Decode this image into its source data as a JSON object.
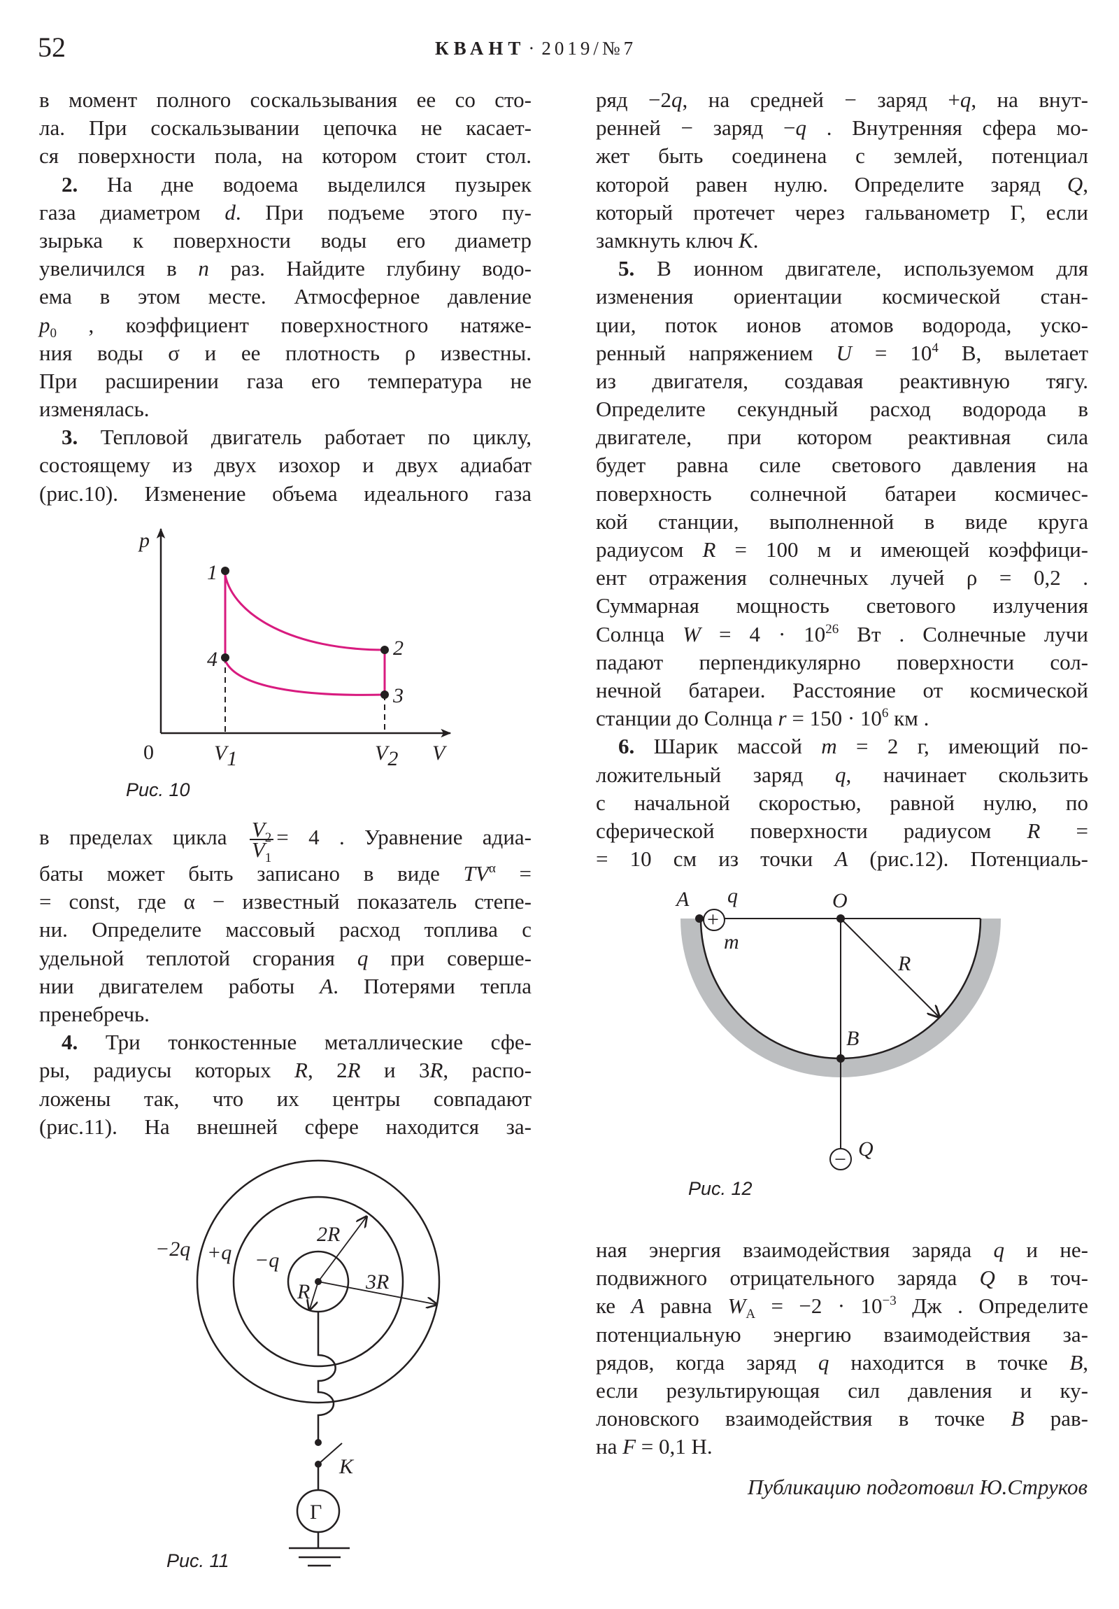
{
  "header": {
    "page_number": "52",
    "magazine": "КВАНТ",
    "separator": "·",
    "issue": "2019/№7"
  },
  "colors": {
    "text": "#231f20",
    "cycle_curve": "#d81b7f",
    "bowl": "#bcbec0"
  },
  "left": {
    "blocks": [
      {
        "lines": [
          {
            "seg": [
              "в момент полного соскальзывания ее со сто-"
            ]
          },
          {
            "seg": [
              "ла. При соскальзывании цепочка не касает-"
            ]
          },
          {
            "seg": [
              "ся поверхности пола, на котором стоит стол."
            ]
          },
          {
            "indent": true,
            "seg": [
              {
                "t": "2.",
                "s": "b"
              },
              " На дне водоема выделился пузырек"
            ]
          },
          {
            "seg": [
              "газа диаметром ",
              {
                "t": "d",
                "s": "i"
              },
              ". При подъеме этого пу-"
            ]
          },
          {
            "seg": [
              "зырька к поверхности воды его диаметр"
            ]
          },
          {
            "seg": [
              "увеличился в ",
              {
                "t": "n",
                "s": "i"
              },
              " раз. Найдите глубину водо-"
            ]
          },
          {
            "seg": [
              "ема в этом месте. Атмосферное давление"
            ]
          },
          {
            "seg": [
              {
                "t": "p",
                "s": "i"
              },
              {
                "t": "0",
                "s": "sub"
              },
              " , коэффициент поверхностного натяже-"
            ]
          },
          {
            "seg": [
              "ния воды σ и ее плотность ρ известны."
            ]
          },
          {
            "seg": [
              "При расширении газа его температура не"
            ]
          },
          {
            "last": true,
            "seg": [
              "изменялась."
            ]
          },
          {
            "indent": true,
            "seg": [
              {
                "t": "3.",
                "s": "b"
              },
              " Тепловой двигатель работает по циклу,"
            ]
          },
          {
            "seg": [
              "состоящему из двух изохор и двух адиабат"
            ]
          },
          {
            "seg": [
              "(рис.10). Изменение объема идеального газа"
            ]
          }
        ]
      },
      {
        "lines": [
          {
            "seg": [
              "в пределах цикла ",
              {
                "frac": {
                  "num": "V",
                  "num_sub": "2",
                  "den": "V",
                  "den_sub": "1"
                }
              },
              "= 4 . Уравнение адиа-"
            ]
          },
          {
            "seg": [
              "баты может быть записано в виде ",
              {
                "t": "TV",
                "s": "i"
              },
              {
                "t": "α",
                "s": "sup"
              },
              " ="
            ]
          },
          {
            "seg": [
              "= const, где α − известный показатель степе-"
            ]
          },
          {
            "seg": [
              "ни. Определите массовый расход топлива с"
            ]
          },
          {
            "seg": [
              "удельной теплотой сгорания ",
              {
                "t": "q",
                "s": "i"
              },
              " при соверше-"
            ]
          },
          {
            "seg": [
              "нии двигателем работы ",
              {
                "t": "A",
                "s": "i"
              },
              ". Потерями тепла"
            ]
          },
          {
            "last": true,
            "seg": [
              "пренебречь."
            ]
          },
          {
            "indent": true,
            "seg": [
              {
                "t": "4.",
                "s": "b"
              },
              " Три тонкостенные металлические сфе-"
            ]
          },
          {
            "seg": [
              "ры, радиусы которых ",
              {
                "t": "R",
                "s": "i"
              },
              ", 2",
              {
                "t": "R",
                "s": "i"
              },
              " и 3",
              {
                "t": "R",
                "s": "i"
              },
              ", распо-"
            ]
          },
          {
            "seg": [
              "ложены так, что их центры совпадают"
            ]
          },
          {
            "seg": [
              "(рис.11). На внешней сфере находится за-"
            ]
          }
        ]
      }
    ]
  },
  "right": {
    "blocks": [
      {
        "lines": [
          {
            "seg": [
              "ряд −2",
              {
                "t": "q",
                "s": "i"
              },
              ", на средней − заряд +",
              {
                "t": "q",
                "s": "i"
              },
              ", на внут-"
            ]
          },
          {
            "seg": [
              "ренней − заряд −",
              {
                "t": "q",
                "s": "i"
              },
              " . Внутренняя сфера мо-"
            ]
          },
          {
            "seg": [
              "жет быть соединена с землей, потенциал"
            ]
          },
          {
            "seg": [
              "которой равен нулю. Определите заряд ",
              {
                "t": "Q",
                "s": "i"
              },
              ","
            ]
          },
          {
            "seg": [
              "который протечет через гальванометр Г, если"
            ]
          },
          {
            "last": true,
            "seg": [
              "замкнуть ключ ",
              {
                "t": "K",
                "s": "i"
              },
              "."
            ]
          },
          {
            "indent": true,
            "seg": [
              {
                "t": "5.",
                "s": "b"
              },
              " В ионном двигателе, используемом для"
            ]
          },
          {
            "seg": [
              "изменения ориентации космической стан-"
            ]
          },
          {
            "seg": [
              "ции, поток ионов атомов водорода, уско-"
            ]
          },
          {
            "seg": [
              "ренный напряжением ",
              {
                "t": "U",
                "s": "i"
              },
              " = 10",
              {
                "t": "4",
                "s": "sup"
              },
              " В, вылетает"
            ]
          },
          {
            "seg": [
              "из двигателя, создавая реактивную тягу."
            ]
          },
          {
            "seg": [
              "Определите секундный расход водорода в"
            ]
          },
          {
            "seg": [
              "двигателе, при котором реактивная сила"
            ]
          },
          {
            "seg": [
              "будет равна силе светового давления на"
            ]
          },
          {
            "seg": [
              "поверхность солнечной батареи космичес-"
            ]
          },
          {
            "seg": [
              "кой станции, выполненной в виде круга"
            ]
          },
          {
            "seg": [
              "радиусом ",
              {
                "t": "R",
                "s": "i"
              },
              " = 100 м и имеющей коэффици-"
            ]
          },
          {
            "seg": [
              "ент отражения солнечных лучей ρ = 0,2 ."
            ]
          },
          {
            "seg": [
              "Суммарная мощность светового излучения"
            ]
          },
          {
            "seg": [
              "Солнца ",
              {
                "t": "W",
                "s": "i"
              },
              " = 4 · 10",
              {
                "t": "26",
                "s": "sup"
              },
              " Вт . Солнечные лучи"
            ]
          },
          {
            "seg": [
              "падают перпендикулярно поверхности сол-"
            ]
          },
          {
            "seg": [
              "нечной батареи. Расстояние от космической"
            ]
          },
          {
            "last": true,
            "seg": [
              "станции до Солнца ",
              {
                "t": "r",
                "s": "i"
              },
              " = 150 · 10",
              {
                "t": "6",
                "s": "sup"
              },
              " км ."
            ]
          },
          {
            "indent": true,
            "seg": [
              {
                "t": "6.",
                "s": "b"
              },
              " Шарик массой ",
              {
                "t": "m",
                "s": "i"
              },
              " = 2 г, имеющий по-"
            ]
          },
          {
            "seg": [
              "ложительный заряд ",
              {
                "t": "q",
                "s": "i"
              },
              ", начинает скользить"
            ]
          },
          {
            "seg": [
              "с начальной скоростью, равной нулю, по"
            ]
          },
          {
            "seg": [
              "сферической поверхности радиусом ",
              {
                "t": "R",
                "s": "i"
              },
              " ="
            ]
          },
          {
            "seg": [
              "= 10 см из точки ",
              {
                "t": "A",
                "s": "i"
              },
              " (рис.12). Потенциаль-"
            ]
          }
        ]
      },
      {
        "lines": [
          {
            "seg": [
              "ная энергия взаимодействия заряда ",
              {
                "t": "q",
                "s": "i"
              },
              " и не-"
            ]
          },
          {
            "seg": [
              "подвижного отрицательного заряда ",
              {
                "t": "Q",
                "s": "i"
              },
              " в точ-"
            ]
          },
          {
            "seg": [
              "ке ",
              {
                "t": "A",
                "s": "i"
              },
              " равна ",
              {
                "t": "W",
                "s": "i"
              },
              {
                "t": "A",
                "s": "sub"
              },
              " = −2 · 10",
              {
                "t": "−3",
                "s": "sup"
              },
              " Дж . Определите"
            ]
          },
          {
            "seg": [
              "потенциальную энергию взаимодействия за-"
            ]
          },
          {
            "seg": [
              "рядов, когда заряд ",
              {
                "t": "q",
                "s": "i"
              },
              " находится в точке ",
              {
                "t": "B",
                "s": "i"
              },
              ","
            ]
          },
          {
            "seg": [
              "если результирующая сил давления и ку-"
            ]
          },
          {
            "seg": [
              "лоновского взаимодействия в точке ",
              {
                "t": "B",
                "s": "i"
              },
              " рав-"
            ]
          },
          {
            "last": true,
            "seg": [
              "на ",
              {
                "t": "F",
                "s": "i"
              },
              " = 0,1 Н."
            ]
          }
        ]
      }
    ]
  },
  "signature": "Публикацию подготовил Ю.Струков",
  "fig10": {
    "caption": "Рис. 10",
    "p_axis": "p",
    "v_axis": "V",
    "origin": "0",
    "v1": "V",
    "v1_sub": "1",
    "v2": "V",
    "v2_sub": "2",
    "points": [
      "1",
      "2",
      "3",
      "4"
    ]
  },
  "fig11": {
    "caption": "Рис. 11",
    "outer_charge": "−2q",
    "middle_charge": "+q",
    "inner_charge": "−q",
    "r_inner": "R",
    "r_middle": "2R",
    "r_outer": "3R",
    "switch": "K",
    "galvanometer": "Г"
  },
  "fig12": {
    "caption": "Рис. 12",
    "point_a": "A",
    "charge_q": "q",
    "mass": "m",
    "center": "O",
    "radius": "R",
    "point_b": "B",
    "charge_big": "Q",
    "plus": "+",
    "minus": "−"
  }
}
